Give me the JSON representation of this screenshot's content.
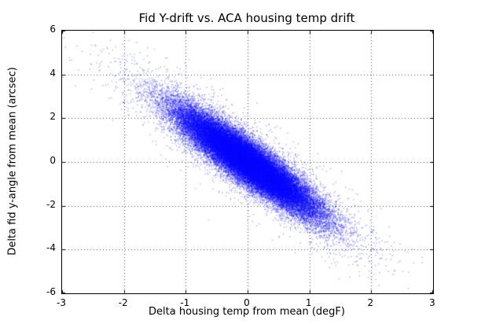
{
  "chart_data": {
    "type": "scatter",
    "title": "Fid Y-drift vs. ACA housing temp drift",
    "xlabel": "Delta housing temp from mean (degF)",
    "ylabel": "Delta fid y-angle from mean (arcsec)",
    "xlim": [
      -3,
      3
    ],
    "ylim": [
      -6,
      6
    ],
    "xticks": [
      -3,
      -2,
      -1,
      0,
      1,
      2,
      3
    ],
    "yticks": [
      -6,
      -4,
      -2,
      0,
      2,
      4,
      6
    ],
    "grid": true,
    "grid_style": "dotted",
    "grid_color": "#555555",
    "legend": false,
    "marker_color": "#0000ff",
    "marker_alpha": 0.3,
    "marker_size_px": 1.5,
    "background_color": "#ffffff",
    "axes_edge_color": "#000000",
    "distribution": {
      "description": "dense anticorrelated point cloud around line y = slope*x; individual points not resolvable",
      "n_points": 50000,
      "seed": 42,
      "x_mean": 0,
      "slope": -1.95,
      "intercept": 0,
      "components": [
        {
          "weight": 0.93,
          "x_std": 0.55,
          "y_noise_std": 0.5
        },
        {
          "weight": 0.07,
          "x_std": 1.0,
          "y_noise_std": 0.9
        }
      ],
      "x_observed_range": [
        -2.6,
        2.9
      ],
      "y_observed_range": [
        -5.5,
        4.4
      ]
    }
  }
}
